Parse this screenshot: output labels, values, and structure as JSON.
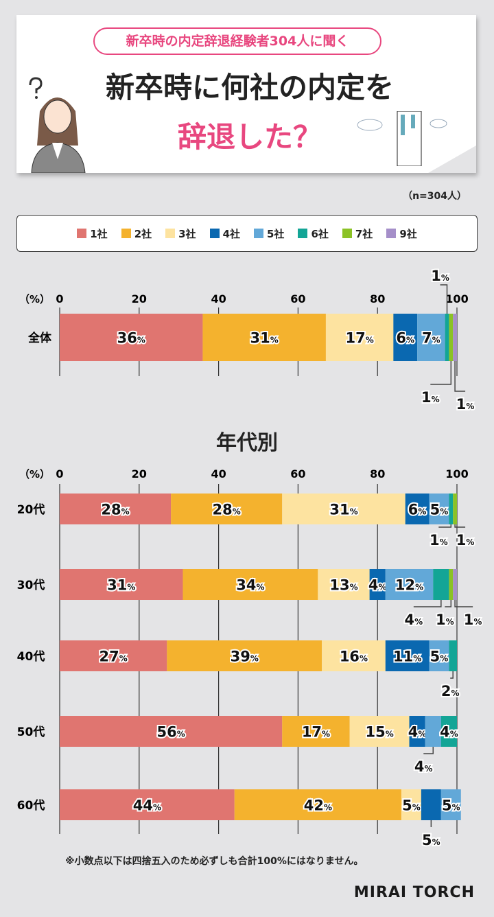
{
  "header": {
    "subtitle": "新卒時の内定辞退経験者304人に聞く",
    "title_line1": "新卒時に何社の内定を",
    "title_line2": "辞退した？"
  },
  "sample_note": "（n=304人）",
  "section_title": "年代別",
  "footnote": "※小数点以下は四捨五入のため必ずしも合計100%にはなりません。",
  "logo": "MIRAI TORCH",
  "chart_data": {
    "type": "bar",
    "stacked": true,
    "orientation": "horizontal",
    "axis_unit_label": "（%）",
    "xlim": [
      0,
      100
    ],
    "ticks": [
      0,
      20,
      40,
      60,
      80,
      100
    ],
    "legend": [
      {
        "name": "1社",
        "color": "#e07570"
      },
      {
        "name": "2社",
        "color": "#f4b22e"
      },
      {
        "name": "3社",
        "color": "#fde3a0"
      },
      {
        "name": "4社",
        "color": "#0a68b0"
      },
      {
        "name": "5社",
        "color": "#62a8d8"
      },
      {
        "name": "6社",
        "color": "#13a596"
      },
      {
        "name": "7社",
        "color": "#8bc226"
      },
      {
        "name": "9社",
        "color": "#a58fc9"
      }
    ],
    "overall": {
      "category": "全体",
      "values": [
        36,
        31,
        17,
        6,
        7,
        1,
        1,
        1
      ]
    },
    "by_age": [
      {
        "category": "20代",
        "values": [
          28,
          28,
          31,
          6,
          5,
          1,
          1,
          0
        ]
      },
      {
        "category": "30代",
        "values": [
          31,
          34,
          13,
          4,
          12,
          4,
          1,
          1
        ]
      },
      {
        "category": "40代",
        "values": [
          27,
          39,
          16,
          11,
          5,
          2,
          0,
          0
        ]
      },
      {
        "category": "50代",
        "values": [
          56,
          17,
          15,
          4,
          4,
          4,
          0,
          0
        ]
      },
      {
        "category": "60代",
        "values": [
          44,
          42,
          5,
          5,
          5,
          0,
          0,
          0
        ]
      }
    ]
  }
}
